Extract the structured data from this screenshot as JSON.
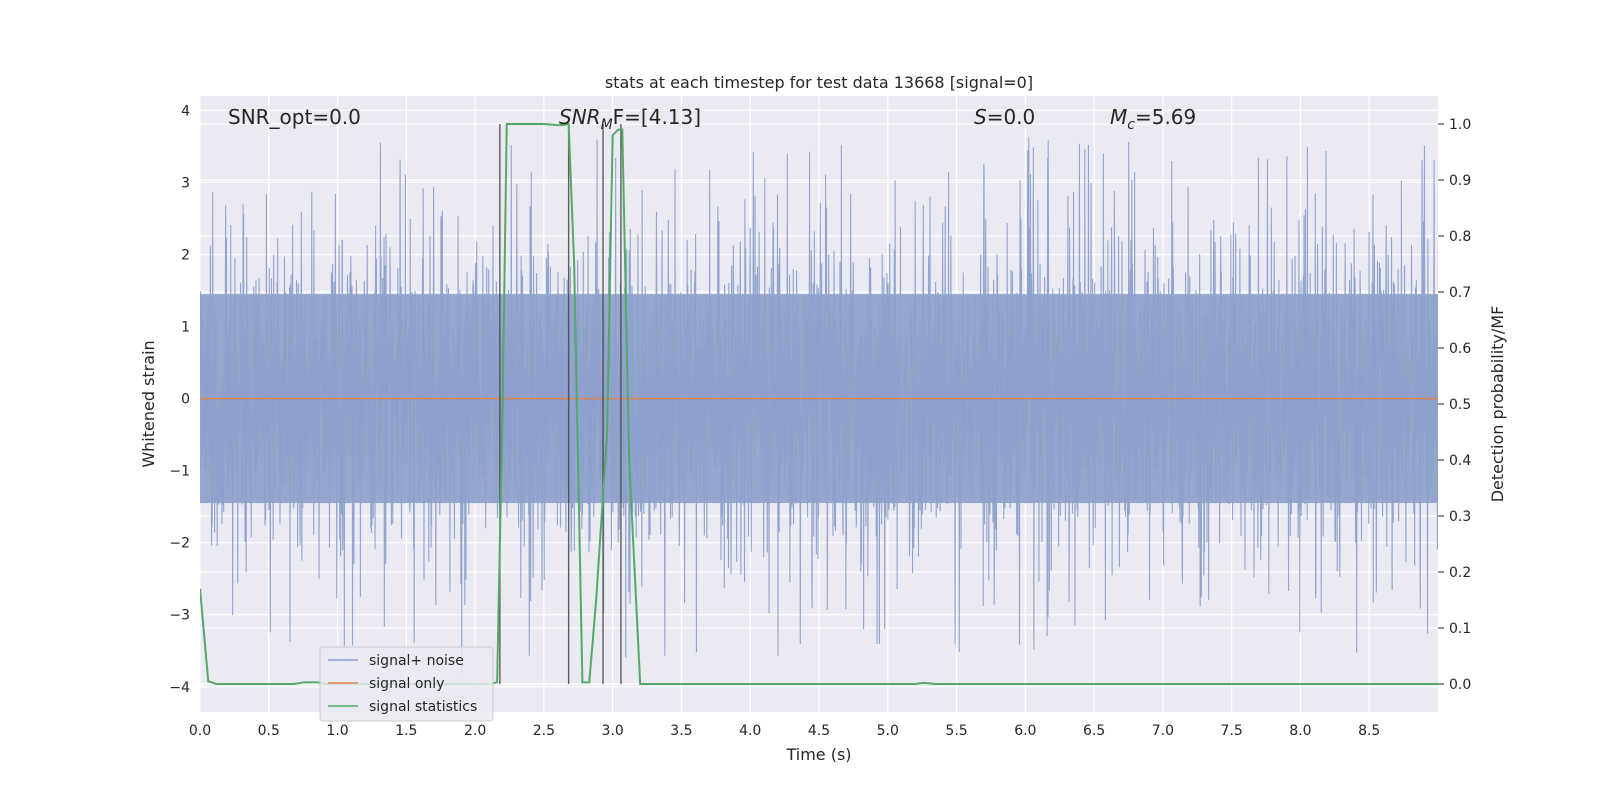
{
  "chart_data": {
    "type": "line",
    "title": "stats at each timestep for test data 13668 [signal=0]",
    "xlabel": "Time (s)",
    "ylabel_left": "Whitened strain",
    "ylabel_right": "Detection probability/MF",
    "xlim": [
      0.0,
      9.0
    ],
    "ylim_left": [
      -4.35,
      4.2
    ],
    "ylim_right": [
      -0.05,
      1.05
    ],
    "x_ticks": [
      0.0,
      0.5,
      1.0,
      1.5,
      2.0,
      2.5,
      3.0,
      3.5,
      4.0,
      4.5,
      5.0,
      5.5,
      6.0,
      6.5,
      7.0,
      7.5,
      8.0,
      8.5
    ],
    "x_tick_labels": [
      "0.0",
      "0.5",
      "1.0",
      "1.5",
      "2.0",
      "2.5",
      "3.0",
      "3.5",
      "4.0",
      "4.5",
      "5.0",
      "5.5",
      "6.0",
      "6.5",
      "7.0",
      "7.5",
      "8.0",
      "8.5"
    ],
    "y_left_ticks": [
      4,
      3,
      2,
      1,
      0,
      -1,
      -2,
      -3,
      -4
    ],
    "y_left_tick_labels": [
      "4",
      "3",
      "2",
      "1",
      "0",
      "−1",
      "−2",
      "−3",
      "−4"
    ],
    "y_right_ticks": [
      1.0,
      0.9,
      0.8,
      0.7,
      0.6,
      0.5,
      0.4,
      0.3,
      0.2,
      0.1,
      0.0
    ],
    "y_right_tick_labels": [
      "1.0",
      "0.9",
      "0.8",
      "0.7",
      "0.6",
      "0.5",
      "0.4",
      "0.3",
      "0.2",
      "0.1",
      "0.0"
    ],
    "grid": true,
    "legend_placement": "lower-left",
    "annotations": {
      "snr_opt": "SNR_opt=0.0",
      "snr_mf_base": "SNR",
      "snr_mf_sub": "M",
      "snr_mf_rest": "F=[4.13]",
      "s_base": "S",
      "s_rest": "=0.0",
      "mc_base": "M",
      "mc_sub": "c",
      "mc_rest": "=5.69"
    },
    "vertical_markers_x": [
      2.18,
      2.68,
      2.93,
      3.06
    ],
    "vertical_markers_top_prob": 1.0,
    "series": [
      {
        "name": "signal+ noise",
        "color": "#8da0cb",
        "axis": "left",
        "description_of_values": "noise",
        "envelope_typical": 2.0,
        "envelope_max": 3.6,
        "x_range": [
          0.0,
          9.0
        ]
      },
      {
        "name": "signal only",
        "color": "#dd8452",
        "axis": "left",
        "x": [
          0.0,
          9.0
        ],
        "y": [
          0.0,
          0.0
        ]
      },
      {
        "name": "signal statistics",
        "color": "#55a868",
        "axis": "right",
        "x": [
          0.0,
          0.06,
          0.12,
          0.2,
          0.68,
          0.76,
          0.85,
          0.92,
          1.0,
          2.1,
          2.16,
          2.2,
          2.23,
          2.3,
          2.5,
          2.6,
          2.63,
          2.68,
          2.72,
          2.78,
          2.83,
          2.88,
          2.96,
          3.0,
          3.04,
          3.07,
          3.12,
          3.2,
          5.2,
          5.26,
          5.35,
          9.0
        ],
        "y": [
          0.17,
          0.005,
          0.0,
          0.0,
          0.0,
          0.003,
          0.003,
          0.0,
          0.0,
          0.0,
          0.003,
          0.5,
          1.0,
          1.0,
          1.0,
          0.998,
          0.998,
          1.0,
          0.75,
          0.003,
          0.003,
          0.15,
          0.45,
          0.98,
          0.99,
          0.99,
          0.4,
          0.0,
          0.0,
          0.002,
          0.0,
          0.0
        ]
      }
    ]
  }
}
